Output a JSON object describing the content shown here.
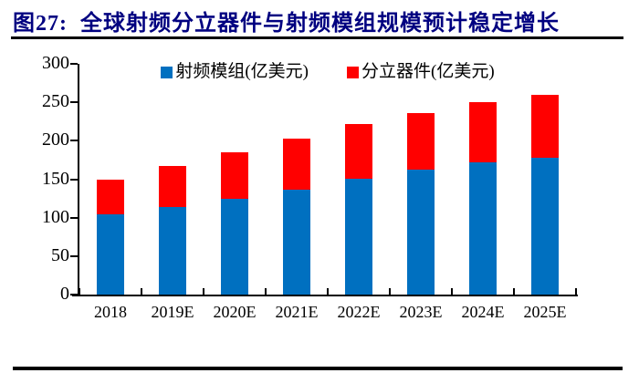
{
  "header": {
    "title": "图27:  全球射频分立器件与射频模组规模预计稳定增长"
  },
  "colors": {
    "title_navy": "#000080",
    "module_blue": "#0070C0",
    "discrete_red": "#FF0000",
    "axis_black": "#000000"
  },
  "chart_data": {
    "type": "bar",
    "stacked": true,
    "title": "全球射频分立器件与射频模组规模预计稳定增长",
    "categories": [
      "2018",
      "2019E",
      "2020E",
      "2021E",
      "2022E",
      "2023E",
      "2024E",
      "2025E"
    ],
    "series": [
      {
        "name": "射频模组(亿美元)",
        "color": "#0070C0",
        "values": [
          104,
          114,
          124,
          136,
          151,
          162,
          172,
          178
        ]
      },
      {
        "name": "分立器件(亿美元)",
        "color": "#FF0000",
        "values": [
          46,
          53,
          61,
          67,
          71,
          74,
          78,
          82
        ]
      }
    ],
    "totals": [
      150,
      167,
      185,
      203,
      222,
      236,
      250,
      260
    ],
    "xlabel": "",
    "ylabel": "",
    "ylim": [
      0,
      300
    ],
    "yticks": [
      0,
      50,
      100,
      150,
      200,
      250,
      300
    ],
    "grid": false,
    "legend_position": "top-center"
  }
}
